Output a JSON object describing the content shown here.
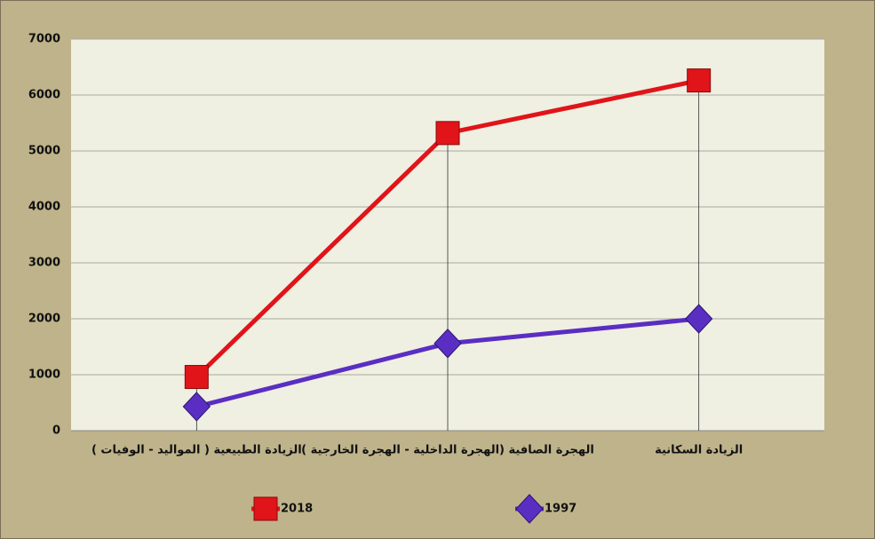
{
  "chart_data": {
    "type": "line",
    "categories": [
      "الزيادة الطبيعية ( المواليد - الوفيات )",
      "الهجرة الصافية (الهجرة الداخلية - الهجرة الخارجية )",
      "الزيادة السكانية"
    ],
    "series": [
      {
        "name": "2018",
        "color": "#e01419",
        "marker": "square",
        "values": [
          960,
          5320,
          6260
        ]
      },
      {
        "name": "1997",
        "color": "#5a2ec2",
        "marker": "diamond",
        "values": [
          430,
          1560,
          2000
        ]
      }
    ],
    "ylim": [
      0,
      7000
    ],
    "yticks": [
      0,
      1000,
      2000,
      3000,
      4000,
      5000,
      6000,
      7000
    ],
    "grid": true,
    "legend": "bottom"
  }
}
